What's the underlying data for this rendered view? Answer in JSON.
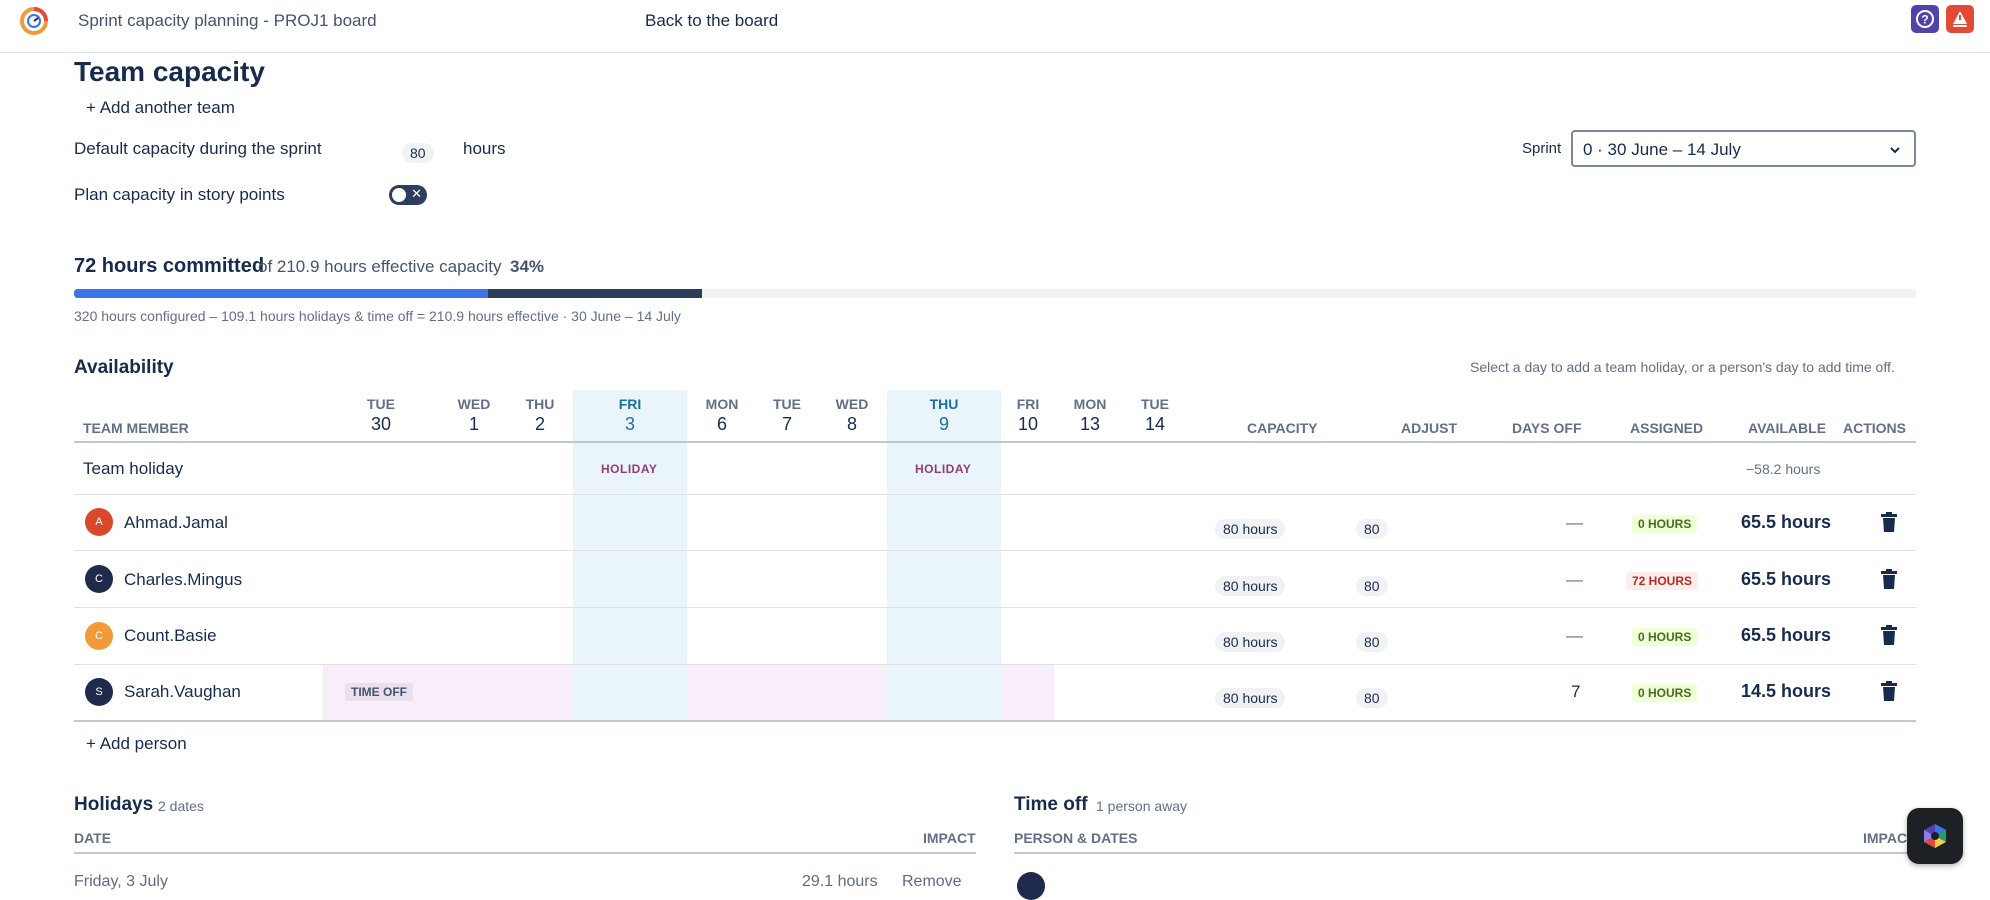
{
  "header": {
    "app_title": "Sprint capacity planning - PROJ1 board",
    "back_link": "Back to the board"
  },
  "page": {
    "title": "Team capacity",
    "add_team": "+ Add another team"
  },
  "settings": {
    "default_capacity_label": "Default capacity during the sprint",
    "default_capacity_value": "80",
    "hours_unit": "hours",
    "story_points_label": "Plan capacity in story points",
    "story_points_enabled": false,
    "sprint_label": "Sprint",
    "sprint_value": "0 · 30 June – 14 July"
  },
  "summary": {
    "committed": "72 hours committed",
    "of_effective": "of 210.9 hours effective capacity",
    "percent": "34%",
    "caption": "320 hours configured – 109.1 hours holidays & time off = 210.9 hours effective · 30 June – 14 July",
    "bar_blue_fraction": 0.225,
    "bar_dark_fraction": 0.341,
    "colors": {
      "blue": "#3b73e8",
      "dark": "#2c3e5d"
    }
  },
  "availability": {
    "title": "Availability",
    "hint": "Select a day to add a team holiday, or a person's day to add time off.",
    "member_header": "TEAM MEMBER",
    "days": [
      {
        "name": "TUE",
        "date": "30"
      },
      {
        "name": "WED",
        "date": "1"
      },
      {
        "name": "THU",
        "date": "2"
      },
      {
        "name": "FRI",
        "date": "3"
      },
      {
        "name": "MON",
        "date": "6"
      },
      {
        "name": "TUE",
        "date": "7"
      },
      {
        "name": "WED",
        "date": "8"
      },
      {
        "name": "THU",
        "date": "9"
      },
      {
        "name": "FRI",
        "date": "10"
      },
      {
        "name": "MON",
        "date": "13"
      },
      {
        "name": "TUE",
        "date": "14"
      }
    ],
    "columns": {
      "capacity": "CAPACITY",
      "adjust": "ADJUST",
      "days_off": "DAYS OFF",
      "assigned": "ASSIGNED",
      "available": "AVAILABLE",
      "actions": "ACTIONS"
    },
    "team_holiday": {
      "label": "Team holiday",
      "tag": "HOLIDAY",
      "available": "−58.2 hours"
    },
    "members": [
      {
        "initial": "A",
        "name": "Ahmad.Jamal",
        "color": "#d9482b",
        "capacity": "80 hours",
        "adjust": "80",
        "days_off": "—",
        "assigned": "0 HOURS",
        "assigned_state": "ok",
        "available": "65.5 hours"
      },
      {
        "initial": "C",
        "name": "Charles.Mingus",
        "color": "#1f2a4d",
        "capacity": "80 hours",
        "adjust": "80",
        "days_off": "—",
        "assigned": "72 HOURS",
        "assigned_state": "warn",
        "available": "65.5 hours"
      },
      {
        "initial": "C",
        "name": "Count.Basie",
        "color": "#f19a38",
        "capacity": "80 hours",
        "adjust": "80",
        "days_off": "—",
        "assigned": "0 HOURS",
        "assigned_state": "ok",
        "available": "65.5 hours"
      },
      {
        "initial": "S",
        "name": "Sarah.Vaughan",
        "color": "#1f2a4d",
        "capacity": "80 hours",
        "adjust": "80",
        "days_off": "7",
        "assigned": "0 HOURS",
        "assigned_state": "ok",
        "available": "14.5 hours",
        "time_off_tag": "TIME OFF"
      }
    ],
    "add_person": "+ Add person"
  },
  "holidays": {
    "title": "Holidays",
    "count": "2 dates",
    "col_date": "DATE",
    "col_impact": "IMPACT",
    "first_row_date": "Friday, 3 July",
    "first_row_hours": "29.1 hours",
    "first_row_action": "Remove"
  },
  "time_off": {
    "title": "Time off",
    "count": "1 person away",
    "col_person": "PERSON & DATES",
    "col_impact": "IMPACT"
  },
  "icons": {
    "logo": "app-logo",
    "help": "help-icon",
    "alert": "alert-icon",
    "trash": "trash-icon",
    "chevron": "chevron-down-icon",
    "fab": "assistant-icon"
  }
}
